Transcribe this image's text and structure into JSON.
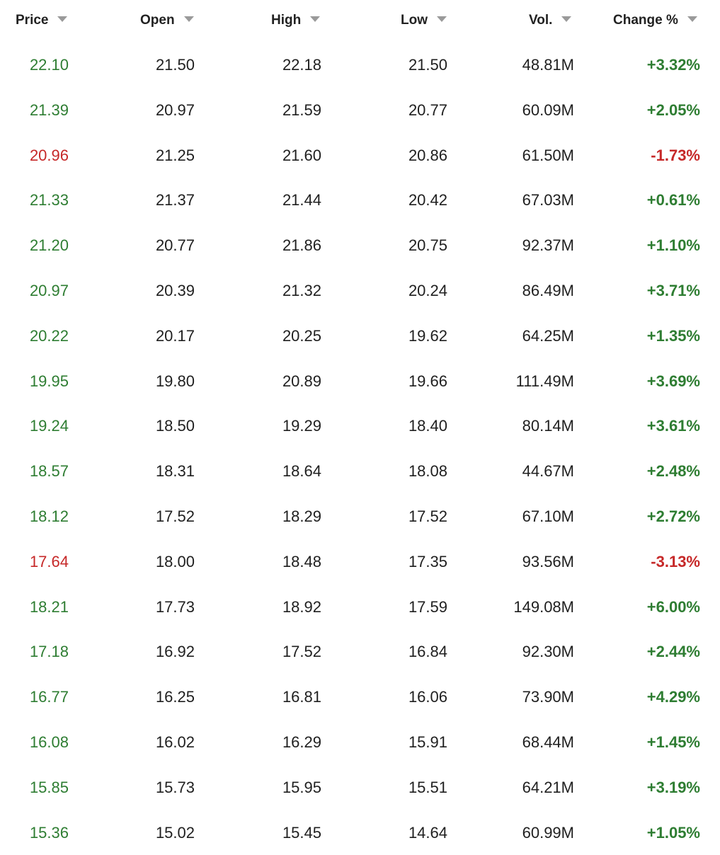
{
  "table": {
    "columns": [
      {
        "key": "price",
        "label": "Price"
      },
      {
        "key": "open",
        "label": "Open"
      },
      {
        "key": "high",
        "label": "High"
      },
      {
        "key": "low",
        "label": "Low"
      },
      {
        "key": "vol",
        "label": "Vol."
      },
      {
        "key": "change",
        "label": "Change %"
      }
    ],
    "sort_icon": "caret-down-icon",
    "colors": {
      "up": "#2e7d32",
      "down": "#c62828",
      "text": "#1f1f1f",
      "caret": "#9a9a9a"
    },
    "rows": [
      {
        "price": "22.10",
        "open": "21.50",
        "high": "22.18",
        "low": "21.50",
        "vol": "48.81M",
        "change": "+3.32%",
        "dir": "up"
      },
      {
        "price": "21.39",
        "open": "20.97",
        "high": "21.59",
        "low": "20.77",
        "vol": "60.09M",
        "change": "+2.05%",
        "dir": "up"
      },
      {
        "price": "20.96",
        "open": "21.25",
        "high": "21.60",
        "low": "20.86",
        "vol": "61.50M",
        "change": "-1.73%",
        "dir": "down"
      },
      {
        "price": "21.33",
        "open": "21.37",
        "high": "21.44",
        "low": "20.42",
        "vol": "67.03M",
        "change": "+0.61%",
        "dir": "up"
      },
      {
        "price": "21.20",
        "open": "20.77",
        "high": "21.86",
        "low": "20.75",
        "vol": "92.37M",
        "change": "+1.10%",
        "dir": "up"
      },
      {
        "price": "20.97",
        "open": "20.39",
        "high": "21.32",
        "low": "20.24",
        "vol": "86.49M",
        "change": "+3.71%",
        "dir": "up"
      },
      {
        "price": "20.22",
        "open": "20.17",
        "high": "20.25",
        "low": "19.62",
        "vol": "64.25M",
        "change": "+1.35%",
        "dir": "up"
      },
      {
        "price": "19.95",
        "open": "19.80",
        "high": "20.89",
        "low": "19.66",
        "vol": "111.49M",
        "change": "+3.69%",
        "dir": "up"
      },
      {
        "price": "19.24",
        "open": "18.50",
        "high": "19.29",
        "low": "18.40",
        "vol": "80.14M",
        "change": "+3.61%",
        "dir": "up"
      },
      {
        "price": "18.57",
        "open": "18.31",
        "high": "18.64",
        "low": "18.08",
        "vol": "44.67M",
        "change": "+2.48%",
        "dir": "up"
      },
      {
        "price": "18.12",
        "open": "17.52",
        "high": "18.29",
        "low": "17.52",
        "vol": "67.10M",
        "change": "+2.72%",
        "dir": "up"
      },
      {
        "price": "17.64",
        "open": "18.00",
        "high": "18.48",
        "low": "17.35",
        "vol": "93.56M",
        "change": "-3.13%",
        "dir": "down"
      },
      {
        "price": "18.21",
        "open": "17.73",
        "high": "18.92",
        "low": "17.59",
        "vol": "149.08M",
        "change": "+6.00%",
        "dir": "up"
      },
      {
        "price": "17.18",
        "open": "16.92",
        "high": "17.52",
        "low": "16.84",
        "vol": "92.30M",
        "change": "+2.44%",
        "dir": "up"
      },
      {
        "price": "16.77",
        "open": "16.25",
        "high": "16.81",
        "low": "16.06",
        "vol": "73.90M",
        "change": "+4.29%",
        "dir": "up"
      },
      {
        "price": "16.08",
        "open": "16.02",
        "high": "16.29",
        "low": "15.91",
        "vol": "68.44M",
        "change": "+1.45%",
        "dir": "up"
      },
      {
        "price": "15.85",
        "open": "15.73",
        "high": "15.95",
        "low": "15.51",
        "vol": "64.21M",
        "change": "+3.19%",
        "dir": "up"
      },
      {
        "price": "15.36",
        "open": "15.02",
        "high": "15.45",
        "low": "14.64",
        "vol": "60.99M",
        "change": "+1.05%",
        "dir": "up"
      }
    ]
  }
}
